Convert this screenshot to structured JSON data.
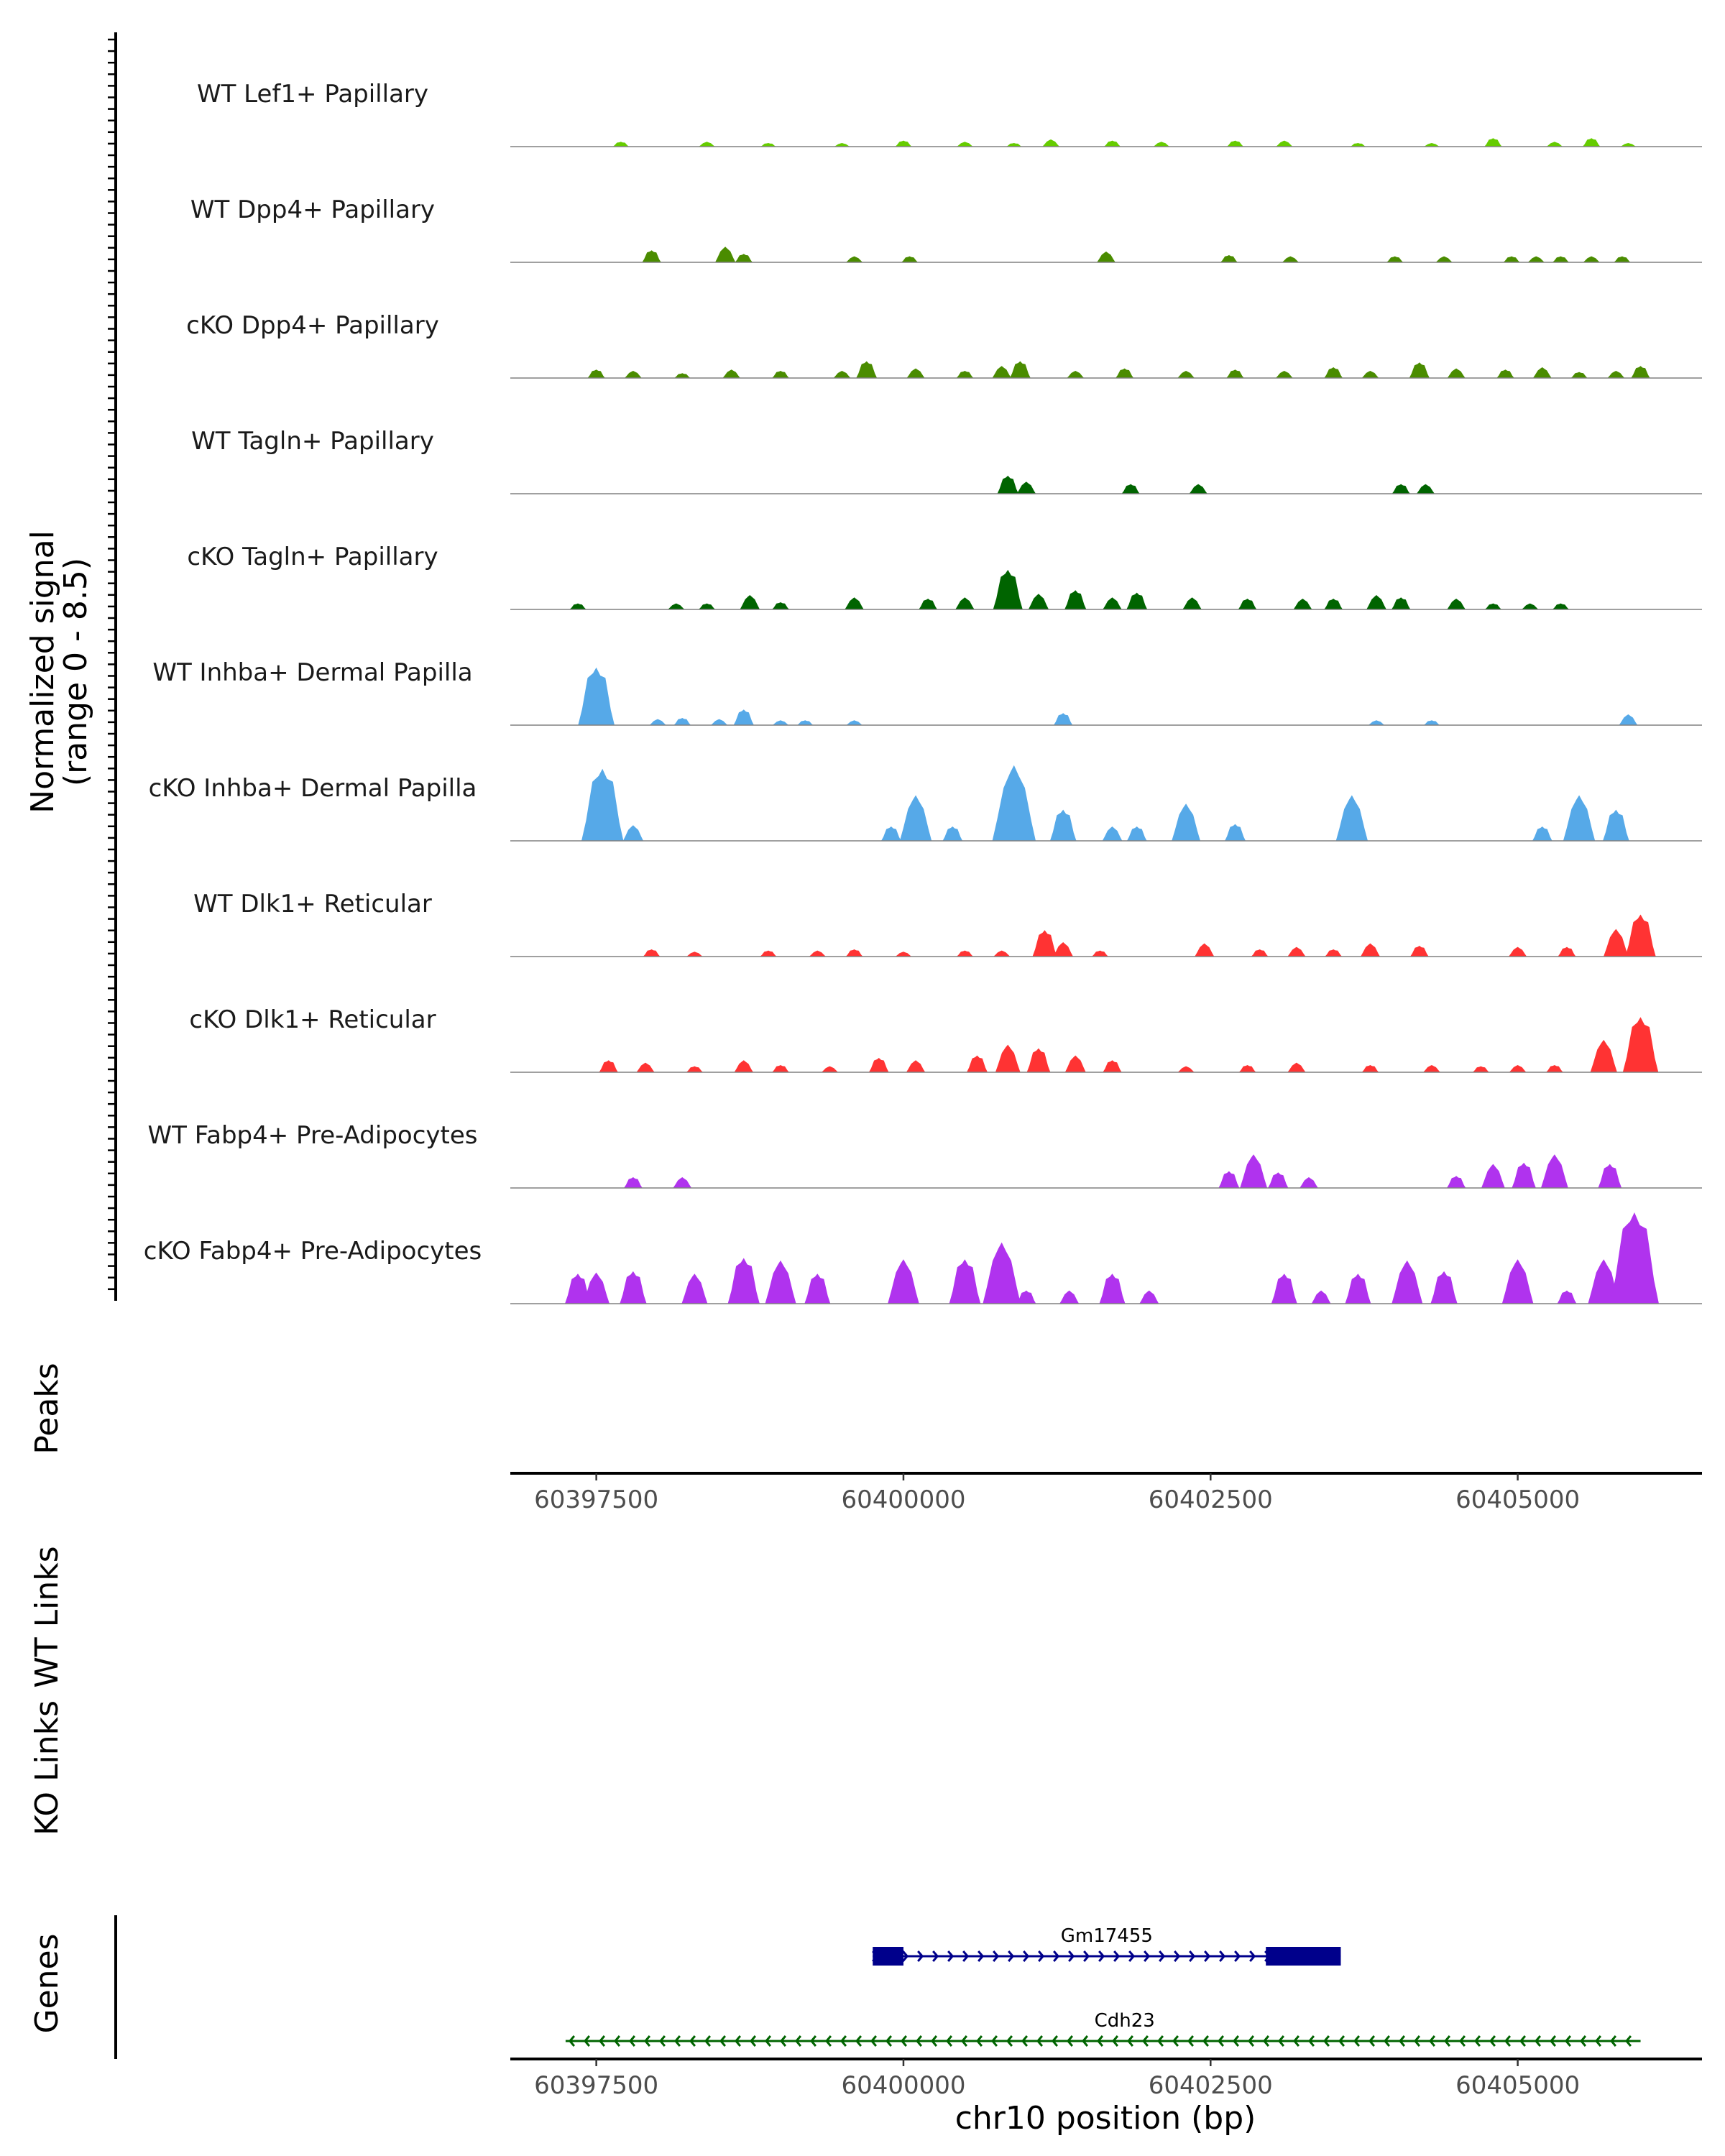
{
  "chart_data": {
    "type": "area",
    "title": "",
    "xlabel": "chr10 position (bp)",
    "ylabel": "Normalized signal",
    "ylabel_range": "(range 0 - 8.5)",
    "yrange": [
      0,
      8.5
    ],
    "xlim": [
      60396800,
      60406500
    ],
    "x_ticks": [
      60397500,
      60400000,
      60402500,
      60405000
    ],
    "x_tick_labels": [
      "60397500",
      "60400000",
      "60402500",
      "60405000"
    ],
    "series": [
      {
        "name": "WT Lef1+ Papillary",
        "color": "#66CC00",
        "peaks": [
          [
            60397700,
            0.4
          ],
          [
            60398400,
            0.4
          ],
          [
            60398900,
            0.3
          ],
          [
            60399500,
            0.3
          ],
          [
            60400000,
            0.5
          ],
          [
            60400500,
            0.4
          ],
          [
            60400900,
            0.3
          ],
          [
            60401200,
            0.6
          ],
          [
            60401700,
            0.5
          ],
          [
            60402100,
            0.4
          ],
          [
            60402700,
            0.5
          ],
          [
            60403100,
            0.5
          ],
          [
            60403700,
            0.3
          ],
          [
            60404300,
            0.3
          ],
          [
            60404800,
            0.7
          ],
          [
            60405300,
            0.4
          ],
          [
            60405600,
            0.7
          ],
          [
            60405900,
            0.3
          ]
        ]
      },
      {
        "name": "WT Dpp4+ Papillary",
        "color": "#4A8C00",
        "peaks": [
          [
            60397950,
            1.0
          ],
          [
            60398550,
            1.3
          ],
          [
            60398700,
            0.7
          ],
          [
            60399600,
            0.5
          ],
          [
            60400050,
            0.5
          ],
          [
            60401650,
            0.9
          ],
          [
            60402650,
            0.6
          ],
          [
            60403150,
            0.5
          ],
          [
            60404000,
            0.5
          ],
          [
            60404400,
            0.5
          ],
          [
            60404950,
            0.5
          ],
          [
            60405150,
            0.5
          ],
          [
            60405350,
            0.5
          ],
          [
            60405600,
            0.5
          ],
          [
            60405850,
            0.5
          ]
        ]
      },
      {
        "name": "cKO Dpp4+ Papillary",
        "color": "#4A8C00",
        "peaks": [
          [
            60397500,
            0.7
          ],
          [
            60397800,
            0.6
          ],
          [
            60398200,
            0.4
          ],
          [
            60398600,
            0.7
          ],
          [
            60399000,
            0.6
          ],
          [
            60399500,
            0.6
          ],
          [
            60399700,
            1.4
          ],
          [
            60400100,
            0.8
          ],
          [
            60400500,
            0.6
          ],
          [
            60400800,
            1.0
          ],
          [
            60400950,
            1.4
          ],
          [
            60401400,
            0.6
          ],
          [
            60401800,
            0.8
          ],
          [
            60402300,
            0.6
          ],
          [
            60402700,
            0.7
          ],
          [
            60403100,
            0.6
          ],
          [
            60403500,
            0.9
          ],
          [
            60403800,
            0.6
          ],
          [
            60404200,
            1.3
          ],
          [
            60404500,
            0.8
          ],
          [
            60404900,
            0.7
          ],
          [
            60405200,
            0.9
          ],
          [
            60405500,
            0.5
          ],
          [
            60405800,
            0.6
          ],
          [
            60406000,
            1.0
          ]
        ]
      },
      {
        "name": "WT Tagln+ Papillary",
        "color": "#006400",
        "peaks": [
          [
            60400850,
            1.5
          ],
          [
            60401000,
            1.0
          ],
          [
            60401850,
            0.8
          ],
          [
            60402400,
            0.8
          ],
          [
            60404050,
            0.8
          ],
          [
            60404250,
            0.8
          ]
        ]
      },
      {
        "name": "cKO Tagln+ Papillary",
        "color": "#006400",
        "peaks": [
          [
            60397350,
            0.5
          ],
          [
            60398150,
            0.5
          ],
          [
            60398400,
            0.5
          ],
          [
            60398750,
            1.2
          ],
          [
            60399000,
            0.6
          ],
          [
            60399600,
            1.0
          ],
          [
            60400200,
            0.9
          ],
          [
            60400500,
            1.0
          ],
          [
            60400850,
            3.3
          ],
          [
            60401100,
            1.3
          ],
          [
            60401400,
            1.6
          ],
          [
            60401700,
            1.0
          ],
          [
            60401900,
            1.4
          ],
          [
            60402350,
            1.0
          ],
          [
            60402800,
            0.9
          ],
          [
            60403250,
            0.9
          ],
          [
            60403500,
            0.9
          ],
          [
            60403850,
            1.2
          ],
          [
            60404050,
            1.0
          ],
          [
            60404500,
            0.9
          ],
          [
            60404800,
            0.5
          ],
          [
            60405100,
            0.5
          ],
          [
            60405350,
            0.5
          ]
        ]
      },
      {
        "name": "WT Inhba+ Dermal Papilla",
        "color": "#56A9E8",
        "peaks": [
          [
            60397500,
            4.8
          ],
          [
            60398000,
            0.5
          ],
          [
            60398200,
            0.6
          ],
          [
            60398500,
            0.5
          ],
          [
            60398700,
            1.3
          ],
          [
            60399000,
            0.4
          ],
          [
            60399200,
            0.4
          ],
          [
            60399600,
            0.4
          ],
          [
            60401300,
            1.0
          ],
          [
            60403850,
            0.4
          ],
          [
            60404300,
            0.4
          ],
          [
            60405900,
            0.9
          ]
        ]
      },
      {
        "name": "cKO Inhba+ Dermal Papilla",
        "color": "#56A9E8",
        "peaks": [
          [
            60397550,
            6.0
          ],
          [
            60397800,
            1.3
          ],
          [
            60399900,
            1.2
          ],
          [
            60400100,
            3.8
          ],
          [
            60400400,
            1.2
          ],
          [
            60400900,
            6.3
          ],
          [
            60401300,
            2.6
          ],
          [
            60401700,
            1.2
          ],
          [
            60401900,
            1.2
          ],
          [
            60402300,
            3.1
          ],
          [
            60402700,
            1.4
          ],
          [
            60403650,
            3.8
          ],
          [
            60405200,
            1.2
          ],
          [
            60405500,
            3.8
          ],
          [
            60405800,
            2.6
          ]
        ]
      },
      {
        "name": "WT Dlk1+ Reticular",
        "color": "#FF3333",
        "peaks": [
          [
            60397950,
            0.6
          ],
          [
            60398300,
            0.4
          ],
          [
            60398900,
            0.5
          ],
          [
            60399300,
            0.5
          ],
          [
            60399600,
            0.6
          ],
          [
            60400000,
            0.4
          ],
          [
            60400500,
            0.5
          ],
          [
            60400800,
            0.5
          ],
          [
            60401150,
            2.2
          ],
          [
            60401300,
            1.2
          ],
          [
            60401600,
            0.5
          ],
          [
            60402450,
            1.1
          ],
          [
            60402900,
            0.6
          ],
          [
            60403200,
            0.8
          ],
          [
            60403500,
            0.6
          ],
          [
            60403800,
            1.1
          ],
          [
            60404200,
            0.9
          ],
          [
            60405000,
            0.8
          ],
          [
            60405400,
            0.8
          ],
          [
            60405800,
            2.3
          ],
          [
            60406000,
            3.5
          ]
        ]
      },
      {
        "name": "cKO Dlk1+ Reticular",
        "color": "#FF3333",
        "peaks": [
          [
            60397600,
            1.0
          ],
          [
            60397900,
            0.8
          ],
          [
            60398300,
            0.5
          ],
          [
            60398700,
            1.0
          ],
          [
            60399000,
            0.6
          ],
          [
            60399400,
            0.5
          ],
          [
            60399800,
            1.2
          ],
          [
            60400100,
            1.0
          ],
          [
            60400600,
            1.4
          ],
          [
            60400850,
            2.3
          ],
          [
            60401100,
            2.0
          ],
          [
            60401400,
            1.4
          ],
          [
            60401700,
            1.0
          ],
          [
            60402300,
            0.5
          ],
          [
            60402800,
            0.6
          ],
          [
            60403200,
            0.8
          ],
          [
            60403800,
            0.6
          ],
          [
            60404300,
            0.6
          ],
          [
            60404700,
            0.5
          ],
          [
            60405000,
            0.6
          ],
          [
            60405300,
            0.6
          ],
          [
            60405700,
            2.7
          ],
          [
            60406000,
            4.6
          ]
        ]
      },
      {
        "name": "WT Fabp4+ Pre-Adipocytes",
        "color": "#B033EE",
        "peaks": [
          [
            60397800,
            0.9
          ],
          [
            60398200,
            0.9
          ],
          [
            60402650,
            1.4
          ],
          [
            60402850,
            2.8
          ],
          [
            60403050,
            1.3
          ],
          [
            60403300,
            0.9
          ],
          [
            60404500,
            1.0
          ],
          [
            60404800,
            2.0
          ],
          [
            60405050,
            2.1
          ],
          [
            60405300,
            2.8
          ],
          [
            60405750,
            2.0
          ]
        ]
      },
      {
        "name": "cKO Fabp4+ Pre-Adipocytes",
        "color": "#B033EE",
        "peaks": [
          [
            60397350,
            2.5
          ],
          [
            60397500,
            2.6
          ],
          [
            60397800,
            2.7
          ],
          [
            60398300,
            2.5
          ],
          [
            60398700,
            3.8
          ],
          [
            60399000,
            3.6
          ],
          [
            60399300,
            2.5
          ],
          [
            60400000,
            3.7
          ],
          [
            60400500,
            3.7
          ],
          [
            60400800,
            5.1
          ],
          [
            60401000,
            1.1
          ],
          [
            60401350,
            1.1
          ],
          [
            60401700,
            2.5
          ],
          [
            60402000,
            1.1
          ],
          [
            60403100,
            2.5
          ],
          [
            60403400,
            1.1
          ],
          [
            60403700,
            2.5
          ],
          [
            60404100,
            3.6
          ],
          [
            60404400,
            2.7
          ],
          [
            60405000,
            3.7
          ],
          [
            60405400,
            1.1
          ],
          [
            60405700,
            3.7
          ],
          [
            60405950,
            7.6
          ]
        ]
      }
    ],
    "tracks": [
      "Peaks",
      "WT Links",
      "KO Links",
      "Genes"
    ],
    "genes": [
      {
        "name": "Gm17455",
        "strand": "+",
        "start": 60399750,
        "end": 60403560,
        "exons": [
          [
            60399750,
            60400000
          ],
          [
            60402950,
            60403560
          ]
        ],
        "color": "#00008B"
      },
      {
        "name": "Cdh23",
        "strand": "-",
        "start": 60397250,
        "end": 60406000,
        "exons": [],
        "color": "#006400"
      }
    ]
  }
}
